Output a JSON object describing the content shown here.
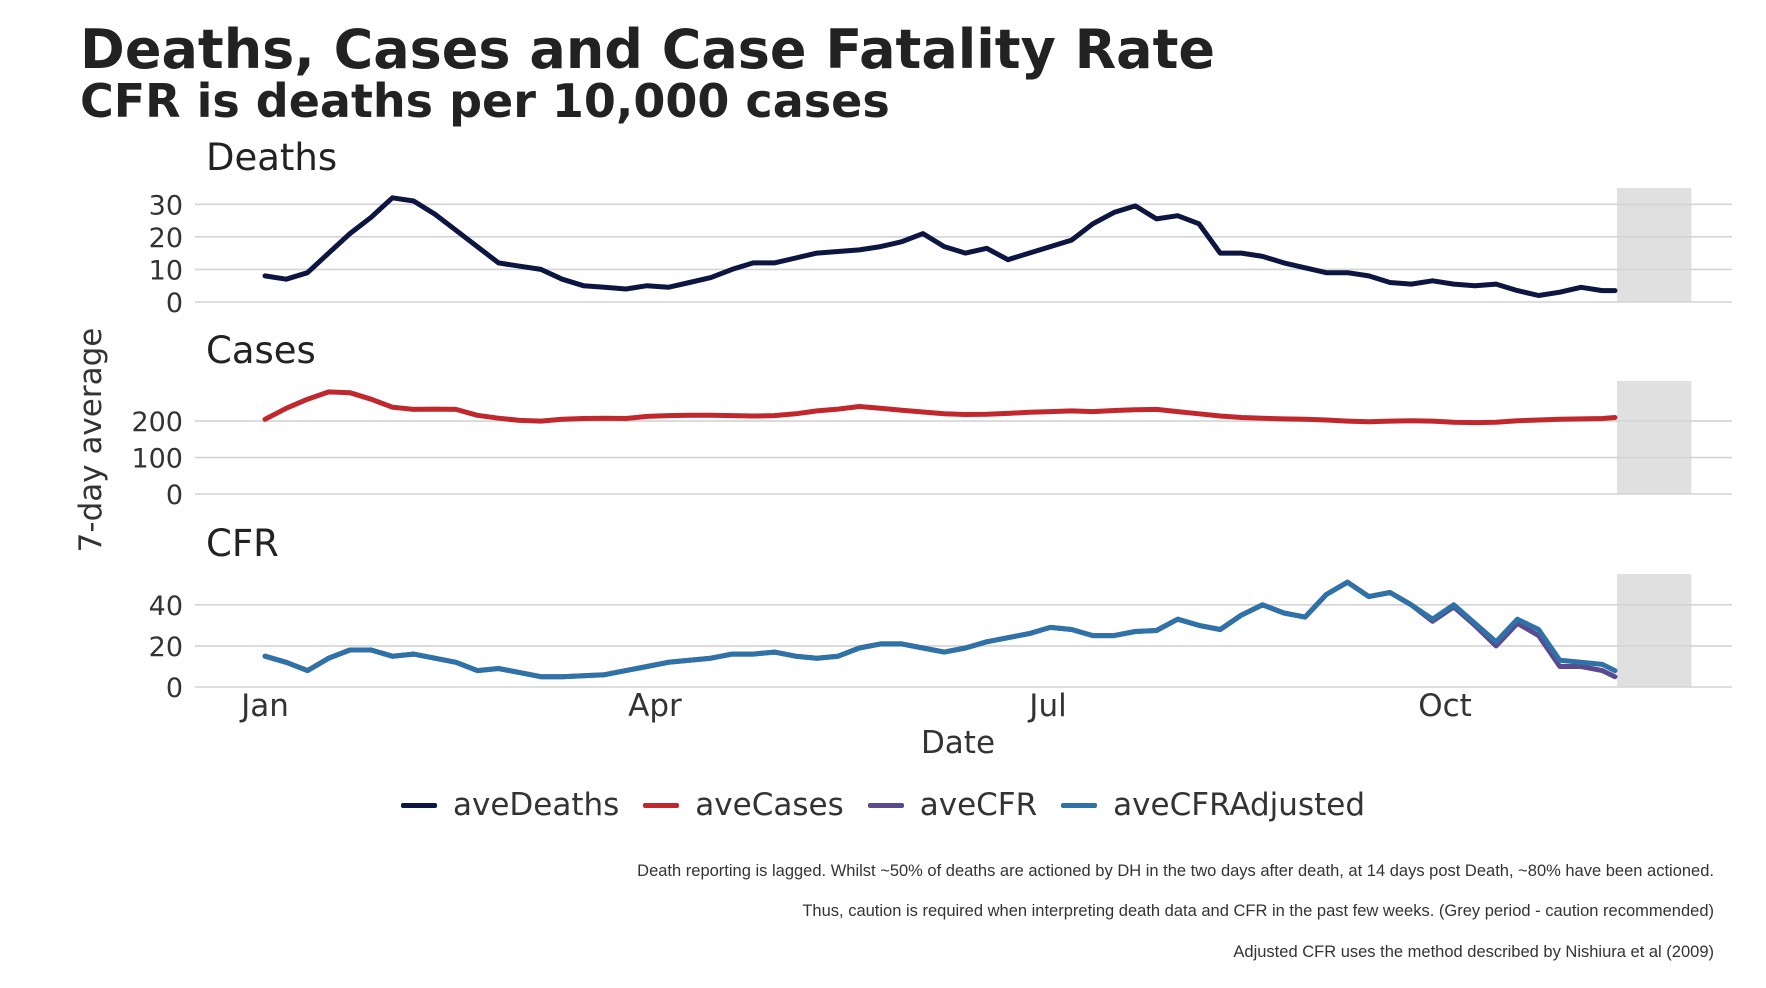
{
  "chart_data": {
    "type": "line",
    "title": "Deaths, Cases and Case Fatality Rate",
    "subtitle": "CFR is deaths per 10,000 cases",
    "xlabel": "Date",
    "ylabel": "7-day average",
    "x_ticks": [
      "Jan",
      "Apr",
      "Jul",
      "Oct"
    ],
    "grey_period": {
      "label": "caution recommended",
      "start_day": 318,
      "end_day": 336
    },
    "legend": {
      "position": "bottom",
      "entries": [
        "aveDeaths",
        "aveCases",
        "aveCFR",
        "aveCFRAdjusted"
      ]
    },
    "panels": [
      {
        "title": "Deaths",
        "ylim": [
          0,
          35
        ],
        "yticks": [
          0,
          10,
          20,
          30
        ],
        "series": [
          {
            "name": "aveDeaths",
            "color": "#0d1541",
            "x": [
              0,
              5,
              10,
              15,
              20,
              25,
              30,
              35,
              40,
              45,
              50,
              55,
              60,
              65,
              70,
              75,
              80,
              85,
              90,
              95,
              100,
              105,
              110,
              115,
              120,
              125,
              130,
              135,
              140,
              145,
              150,
              155,
              160,
              165,
              170,
              175,
              180,
              185,
              190,
              195,
              200,
              205,
              210,
              215,
              220,
              225,
              230,
              235,
              240,
              245,
              250,
              255,
              260,
              265,
              270,
              275,
              280,
              285,
              290,
              295,
              300,
              305,
              310,
              315,
              318
            ],
            "y": [
              8,
              7,
              9,
              15,
              21,
              26,
              32,
              31,
              27,
              22,
              17,
              12,
              11,
              10,
              7,
              5,
              4.5,
              4,
              5,
              4.5,
              6,
              7.5,
              10,
              12,
              12,
              13.5,
              15,
              15.5,
              16,
              17,
              18.5,
              21,
              17,
              15,
              16.5,
              13,
              15,
              17,
              19,
              24,
              27.5,
              29.5,
              25.5,
              26.5,
              24,
              15,
              15,
              14,
              12,
              10.5,
              9,
              9,
              8,
              6,
              5.5,
              6.5,
              5.5,
              5,
              5.5,
              3.5,
              2,
              3,
              4.5,
              3.5,
              3.5
            ]
          }
        ]
      },
      {
        "title": "Cases",
        "ylim": [
          0,
          310
        ],
        "yticks": [
          0,
          100,
          200
        ],
        "series": [
          {
            "name": "aveCases",
            "color": "#c0282d",
            "x": [
              0,
              5,
              10,
              15,
              20,
              25,
              30,
              35,
              40,
              45,
              50,
              55,
              60,
              65,
              70,
              75,
              80,
              85,
              90,
              95,
              100,
              105,
              110,
              115,
              120,
              125,
              130,
              135,
              140,
              145,
              150,
              155,
              160,
              165,
              170,
              175,
              180,
              185,
              190,
              195,
              200,
              205,
              210,
              215,
              220,
              225,
              230,
              235,
              240,
              245,
              250,
              255,
              260,
              265,
              270,
              275,
              280,
              285,
              290,
              295,
              300,
              305,
              310,
              315,
              318
            ],
            "y": [
              205,
              235,
              260,
              280,
              278,
              260,
              238,
              232,
              233,
              232,
              216,
              208,
              202,
              200,
              205,
              207,
              208,
              207,
              213,
              215,
              216,
              216,
              215,
              214,
              215,
              220,
              228,
              233,
              240,
              235,
              230,
              225,
              220,
              218,
              219,
              221,
              224,
              226,
              228,
              226,
              229,
              231,
              232,
              226,
              220,
              214,
              210,
              208,
              206,
              205,
              203,
              200,
              198,
              200,
              201,
              200,
              197,
              196,
              197,
              201,
              203,
              205,
              206,
              207,
              210
            ]
          }
        ]
      },
      {
        "title": "CFR",
        "ylim": [
          0,
          55
        ],
        "yticks": [
          0,
          20,
          40
        ],
        "series": [
          {
            "name": "aveCFR",
            "color": "#5c4a8f",
            "x": [
              0,
              5,
              10,
              15,
              20,
              25,
              30,
              35,
              40,
              45,
              50,
              55,
              60,
              65,
              70,
              75,
              80,
              85,
              90,
              95,
              100,
              105,
              110,
              115,
              120,
              125,
              130,
              135,
              140,
              145,
              150,
              155,
              160,
              165,
              170,
              175,
              180,
              185,
              190,
              195,
              200,
              205,
              210,
              215,
              220,
              225,
              230,
              235,
              240,
              245,
              250,
              255,
              260,
              265,
              270,
              275,
              280,
              285,
              290,
              295,
              300,
              305,
              310,
              315,
              318
            ],
            "y": [
              15,
              12,
              8,
              14,
              18,
              18,
              15,
              16,
              14,
              12,
              8,
              9,
              7,
              5,
              5,
              5.5,
              6,
              8,
              10,
              12,
              13,
              14,
              16,
              16,
              17,
              15,
              14,
              15,
              19,
              21,
              21,
              19,
              17,
              19,
              22,
              24,
              26,
              29,
              28,
              25,
              25,
              27,
              27.5,
              33,
              30,
              28,
              35,
              40,
              36,
              34,
              45,
              51,
              44,
              46,
              40,
              32,
              39,
              30,
              20,
              31,
              25,
              10,
              10,
              8,
              5
            ]
          },
          {
            "name": "aveCFRAdjusted",
            "color": "#2f72a8",
            "x": [
              0,
              5,
              10,
              15,
              20,
              25,
              30,
              35,
              40,
              45,
              50,
              55,
              60,
              65,
              70,
              75,
              80,
              85,
              90,
              95,
              100,
              105,
              110,
              115,
              120,
              125,
              130,
              135,
              140,
              145,
              150,
              155,
              160,
              165,
              170,
              175,
              180,
              185,
              190,
              195,
              200,
              205,
              210,
              215,
              220,
              225,
              230,
              235,
              240,
              245,
              250,
              255,
              260,
              265,
              270,
              275,
              280,
              285,
              290,
              295,
              300,
              305,
              310,
              315,
              318
            ],
            "y": [
              15,
              12,
              8,
              14,
              18,
              18,
              15,
              16,
              14,
              12,
              8,
              9,
              7,
              5,
              5,
              5.5,
              6,
              8,
              10,
              12,
              13,
              14,
              16,
              16,
              17,
              15,
              14,
              15,
              19,
              21,
              21,
              19,
              17,
              19,
              22,
              24,
              26,
              29,
              28,
              25,
              25,
              27,
              27.5,
              33,
              30,
              28,
              35,
              40,
              36,
              34,
              45,
              51,
              44,
              46,
              40,
              33,
              40,
              31,
              22,
              33,
              28,
              13,
              12,
              11,
              8
            ]
          }
        ]
      }
    ]
  },
  "captions": [
    "Death reporting is lagged. Whilst ~50% of deaths are actioned by DH in the two days after death, at 14 days post Death, ~80% have been actioned.",
    "Thus, caution is required when interpreting death data and CFR in the past few weeks. (Grey period - caution recommended)",
    "Adjusted CFR uses the method described by Nishiura et al (2009)"
  ]
}
